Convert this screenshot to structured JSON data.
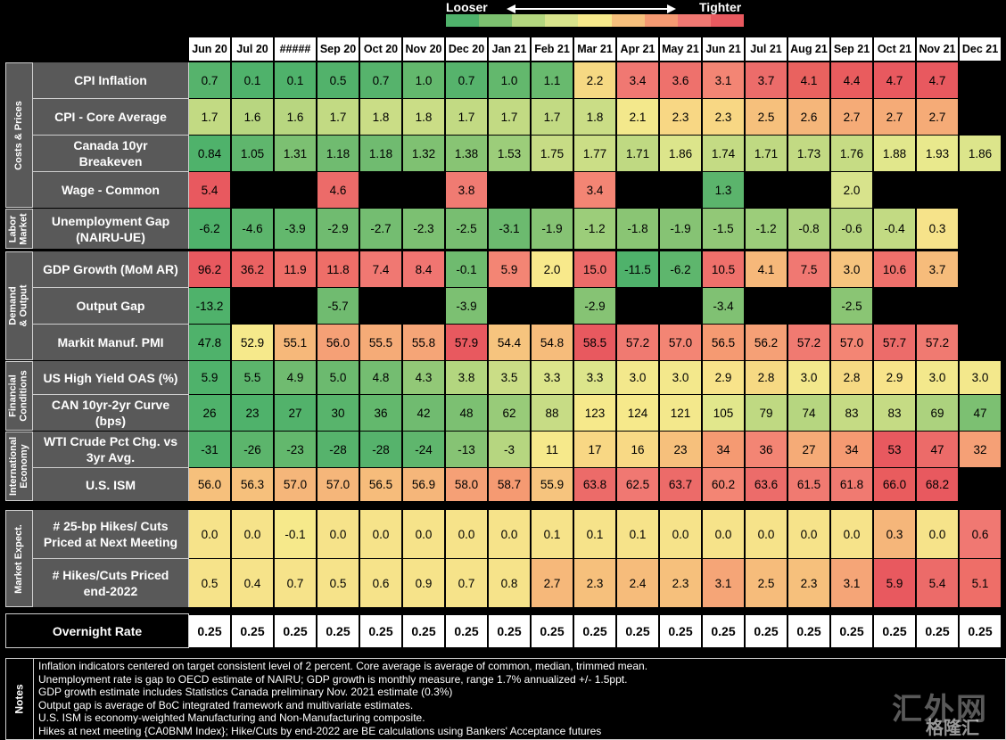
{
  "legend": {
    "looser_label": "Looser",
    "tighter_label": "Tighter",
    "scale_colors": [
      "#4fb26b",
      "#7cc06f",
      "#b3d67f",
      "#d8e38c",
      "#f6e98b",
      "#f6c07c",
      "#f59a72",
      "#f07872",
      "#e8595f"
    ]
  },
  "months": [
    "Jun 20",
    "Jul 20",
    "#####",
    "Sep 20",
    "Oct 20",
    "Nov 20",
    "Dec 20",
    "Jan 21",
    "Feb 21",
    "Mar 21",
    "Apr 21",
    "May 21",
    "Jun 21",
    "Jul 21",
    "Aug 21",
    "Sep 21",
    "Oct 21",
    "Nov 21",
    "Dec 21"
  ],
  "groups": [
    {
      "label": "Costs & Prices"
    },
    {
      "label": "Labor\nMarket"
    },
    {
      "label": "Demand\n& Output"
    },
    {
      "label": "Financial\nConditions"
    },
    {
      "label": "International\nEconomy"
    },
    {
      "label": "Market Expect."
    }
  ],
  "rows": [
    {
      "label": "CPI Inflation",
      "values": [
        "0.7",
        "0.1",
        "0.1",
        "0.5",
        "0.7",
        "1.0",
        "0.7",
        "1.0",
        "1.1",
        "2.2",
        "3.4",
        "3.6",
        "3.1",
        "3.7",
        "4.1",
        "4.4",
        "4.7",
        "4.7",
        ""
      ],
      "colors": [
        "#56b36c",
        "#4fb26b",
        "#4fb26b",
        "#52b26b",
        "#56b36c",
        "#63b86d",
        "#56b36c",
        "#63b86d",
        "#68ba6e",
        "#f6d983",
        "#f07872",
        "#ee716c",
        "#f38574",
        "#ec6c6a",
        "#e9625f",
        "#e95c5e",
        "#e8595f",
        "#e8595f",
        "#000000"
      ]
    },
    {
      "label": "CPI - Core Average",
      "values": [
        "1.7",
        "1.6",
        "1.6",
        "1.7",
        "1.8",
        "1.8",
        "1.7",
        "1.7",
        "1.7",
        "1.8",
        "2.1",
        "2.3",
        "2.3",
        "2.5",
        "2.6",
        "2.7",
        "2.7",
        "2.7",
        ""
      ],
      "colors": [
        "#c2da83",
        "#b8d680",
        "#b8d680",
        "#c2da83",
        "#cadd86",
        "#cadd86",
        "#c2da83",
        "#c2da83",
        "#c2da83",
        "#cadd86",
        "#f3e88c",
        "#f8d784",
        "#f8d784",
        "#f6c07c",
        "#f5b67a",
        "#f5ab77",
        "#f5ab77",
        "#f5ab77",
        "#000000"
      ]
    },
    {
      "label": "Canada 10yr\nBreakeven",
      "values": [
        "0.84",
        "1.05",
        "1.31",
        "1.18",
        "1.18",
        "1.32",
        "1.38",
        "1.53",
        "1.75",
        "1.77",
        "1.71",
        "1.86",
        "1.74",
        "1.71",
        "1.73",
        "1.76",
        "1.88",
        "1.93",
        "1.86"
      ],
      "colors": [
        "#4fb26b",
        "#5fb66d",
        "#7cc072",
        "#70bb70",
        "#70bb70",
        "#7fc172",
        "#88c474",
        "#9ccd7a",
        "#c7dc85",
        "#cbde86",
        "#bfd982",
        "#dce58b",
        "#c4db84",
        "#bfd982",
        "#c2da83",
        "#c6dc84",
        "#e1e78c",
        "#e9e98d",
        "#dce58b"
      ]
    },
    {
      "label": "Wage - Common",
      "values": [
        "5.4",
        "",
        "",
        "4.6",
        "",
        "",
        "3.8",
        "",
        "",
        "3.4",
        "",
        "",
        "1.3",
        "",
        "",
        "2.0",
        "",
        "",
        ""
      ],
      "colors": [
        "#e8595f",
        "#000000",
        "#000000",
        "#ec6b69",
        "#000000",
        "#000000",
        "#f07b72",
        "#000000",
        "#000000",
        "#f38574",
        "#000000",
        "#000000",
        "#5bb46c",
        "#000000",
        "#000000",
        "#d8e38c",
        "#000000",
        "#000000",
        "#000000"
      ]
    },
    {
      "label": "Unemployment Gap\n(NAIRU-UE)",
      "values": [
        "-6.2",
        "-4.6",
        "-3.9",
        "-2.9",
        "-2.7",
        "-2.3",
        "-2.5",
        "-3.1",
        "-1.9",
        "-1.2",
        "-1.8",
        "-1.9",
        "-1.5",
        "-1.2",
        "-0.8",
        "-0.6",
        "-0.4",
        "0.3",
        ""
      ],
      "colors": [
        "#4fb26b",
        "#5cb56c",
        "#63b86d",
        "#70bb70",
        "#74bd71",
        "#7cc072",
        "#78be71",
        "#6cba6f",
        "#86c374",
        "#9ccd7a",
        "#8ac574",
        "#86c374",
        "#92c877",
        "#9ccd7a",
        "#acd27e",
        "#b6d680",
        "#c2da83",
        "#f6e38a",
        "#000000"
      ]
    },
    {
      "label": "GDP Growth (MoM AR)",
      "values": [
        "96.2",
        "36.2",
        "11.9",
        "11.8",
        "7.4",
        "8.4",
        "-0.1",
        "5.9",
        "2.0",
        "15.0",
        "-11.5",
        "-6.2",
        "10.5",
        "4.1",
        "7.5",
        "3.0",
        "10.6",
        "3.7",
        ""
      ],
      "colors": [
        "#e8595f",
        "#ea6262",
        "#ee6e68",
        "#ee6e68",
        "#f07872",
        "#f07571",
        "#6fbb6f",
        "#f38574",
        "#f8e98b",
        "#ec6b69",
        "#4fb26b",
        "#5eb66d",
        "#ef706b",
        "#f6b87a",
        "#f07872",
        "#f6c47e",
        "#ef706b",
        "#f6bc7b",
        "#000000"
      ]
    },
    {
      "label": "Output Gap",
      "values": [
        "-13.2",
        "",
        "",
        "-5.7",
        "",
        "",
        "-3.9",
        "",
        "",
        "-2.9",
        "",
        "",
        "-3.4",
        "",
        "",
        "-2.5",
        "",
        "",
        ""
      ],
      "colors": [
        "#4fb26b",
        "#000000",
        "#000000",
        "#70bb70",
        "#000000",
        "#000000",
        "#7cc072",
        "#000000",
        "#000000",
        "#86c374",
        "#000000",
        "#000000",
        "#80c173",
        "#000000",
        "#000000",
        "#8ac574",
        "#000000",
        "#000000",
        "#000000"
      ]
    },
    {
      "label": "Markit Manuf. PMI",
      "values": [
        "47.8",
        "52.9",
        "55.1",
        "56.0",
        "55.5",
        "55.8",
        "57.9",
        "54.4",
        "54.8",
        "58.5",
        "57.2",
        "57.0",
        "56.5",
        "56.2",
        "57.2",
        "57.0",
        "57.7",
        "57.2",
        ""
      ],
      "colors": [
        "#4fb26b",
        "#f6e98b",
        "#f6b87a",
        "#f5a076",
        "#f5ab77",
        "#f5a577",
        "#e8595f",
        "#f6c47e",
        "#f6bc7b",
        "#e8595f",
        "#f07a71",
        "#f38574",
        "#f59a72",
        "#f5a076",
        "#f07a71",
        "#f38574",
        "#ec6c6a",
        "#f07a71",
        "#000000"
      ]
    },
    {
      "label": "US High Yield OAS (%)",
      "values": [
        "5.9",
        "5.5",
        "4.9",
        "5.0",
        "4.8",
        "4.3",
        "3.8",
        "3.5",
        "3.3",
        "3.3",
        "3.0",
        "3.0",
        "2.9",
        "2.8",
        "3.0",
        "2.8",
        "2.9",
        "3.0",
        "3.0"
      ],
      "colors": [
        "#4fb26b",
        "#5cb56c",
        "#70bb70",
        "#6cba6f",
        "#74bd71",
        "#92c877",
        "#b3d67f",
        "#cadd86",
        "#dce58b",
        "#dce58b",
        "#f3e88c",
        "#f3e88c",
        "#f8e38a",
        "#f6d983",
        "#f3e88c",
        "#f6d983",
        "#f8e38a",
        "#f3e88c",
        "#f3e88c"
      ]
    },
    {
      "label": "CAN 10yr-2yr Curve\n(bps)",
      "values": [
        "26",
        "23",
        "27",
        "30",
        "36",
        "42",
        "48",
        "62",
        "88",
        "123",
        "124",
        "121",
        "105",
        "79",
        "74",
        "83",
        "83",
        "69",
        "47"
      ],
      "colors": [
        "#4fb26b",
        "#4fb26b",
        "#52b26b",
        "#58b46c",
        "#63b86d",
        "#70bb70",
        "#7cc072",
        "#98cb79",
        "#c7dc85",
        "#f6e98b",
        "#f6e98b",
        "#f3e88c",
        "#e1e78c",
        "#bfd982",
        "#b6d680",
        "#c5db84",
        "#c5db84",
        "#acd27e",
        "#7cc072"
      ]
    },
    {
      "label": "WTI Crude Pct Chg. vs\n3yr Avg.",
      "values": [
        "-31",
        "-26",
        "-23",
        "-28",
        "-28",
        "-24",
        "-13",
        "-3",
        "11",
        "17",
        "16",
        "23",
        "34",
        "36",
        "27",
        "34",
        "53",
        "47",
        "32"
      ],
      "colors": [
        "#4fb26b",
        "#5cb56c",
        "#63b86d",
        "#56b36c",
        "#56b36c",
        "#5fb66d",
        "#86c374",
        "#b6d680",
        "#f6e98b",
        "#f8d784",
        "#f8d985",
        "#f6c07c",
        "#f59a72",
        "#f38574",
        "#f5ab77",
        "#f59a72",
        "#e8595f",
        "#ec6b69",
        "#f5a076"
      ]
    },
    {
      "label": "U.S. ISM",
      "values": [
        "56.0",
        "56.3",
        "57.0",
        "57.0",
        "56.5",
        "56.9",
        "58.0",
        "58.7",
        "55.9",
        "63.8",
        "62.5",
        "63.7",
        "60.2",
        "63.6",
        "61.5",
        "61.8",
        "66.0",
        "68.2",
        ""
      ],
      "colors": [
        "#f6c07c",
        "#f6c07c",
        "#f5b67a",
        "#f5b67a",
        "#f6bc7b",
        "#f5b67a",
        "#f5a076",
        "#f59a72",
        "#f6c47e",
        "#ec6b69",
        "#f07872",
        "#ec6b69",
        "#f38574",
        "#ec6c6a",
        "#f07a71",
        "#f07a71",
        "#e95c5e",
        "#e8595f",
        "#000000"
      ]
    },
    {
      "label": "# 25-bp Hikes/ Cuts\nPriced at Next Meeting",
      "values": [
        "0.0",
        "0.0",
        "-0.1",
        "0.0",
        "0.0",
        "0.0",
        "0.0",
        "0.0",
        "0.1",
        "0.1",
        "0.1",
        "0.0",
        "0.0",
        "0.0",
        "0.0",
        "0.0",
        "0.3",
        "0.0",
        "0.6"
      ],
      "colors": [
        "#f6e38a",
        "#f6e38a",
        "#f6e98b",
        "#f6e38a",
        "#f6e38a",
        "#f6e38a",
        "#f6e38a",
        "#f6e38a",
        "#f6e38a",
        "#f6e38a",
        "#f6e38a",
        "#f6e38a",
        "#f6e38a",
        "#f6e38a",
        "#f6e38a",
        "#f6e38a",
        "#f5b67a",
        "#f6e38a",
        "#f07872"
      ]
    },
    {
      "label": "# Hikes/Cuts Priced\nend-2022",
      "values": [
        "0.5",
        "0.4",
        "0.7",
        "0.5",
        "0.6",
        "0.9",
        "0.7",
        "0.8",
        "2.7",
        "2.3",
        "2.4",
        "2.3",
        "3.1",
        "2.5",
        "2.3",
        "3.1",
        "5.9",
        "5.4",
        "5.1"
      ],
      "colors": [
        "#f6e38a",
        "#f6e38a",
        "#f6e38a",
        "#f6e38a",
        "#f6e38a",
        "#f6e38a",
        "#f6e38a",
        "#f6e38a",
        "#f6b87a",
        "#f6c07c",
        "#f6bc7b",
        "#f6c07c",
        "#f5a577",
        "#f6bc7b",
        "#f6c07c",
        "#f5a577",
        "#e8595f",
        "#ec6b69",
        "#ee6e68"
      ]
    }
  ],
  "overnight": {
    "label": "Overnight Rate",
    "values": [
      "0.25",
      "0.25",
      "0.25",
      "0.25",
      "0.25",
      "0.25",
      "0.25",
      "0.25",
      "0.25",
      "0.25",
      "0.25",
      "0.25",
      "0.25",
      "0.25",
      "0.25",
      "0.25",
      "0.25",
      "0.25",
      "0.25"
    ]
  },
  "notes": {
    "title": "Notes",
    "lines": [
      "Inflation indicators centered on target consistent level of 2 percent. Core average is average of common, median, trimmed mean.",
      "Unemployment rate is gap to OECD estimate of NAIRU; GDP growth is monthly measure, range 1.7% annualized +/- 1.5ppt.",
      "GDP growth estimate includes Statistics Canada preliminary Nov. 2021 estimate (0.3%)",
      "Output gap is average of BoC integrated framework and multivariate estimates.",
      "U.S. ISM is economy-weighted Manufacturing and Non-Manufacturing composite.",
      "Hikes at next meeting {CA0BNM Index}; Hike/Cuts by end-2022 are BE calculations using Bankers' Acceptance futures"
    ]
  },
  "watermark": {
    "text1": "汇外网",
    "text2": "格隆汇"
  },
  "chart_data": {
    "type": "table",
    "columns": [
      "Jun 20",
      "Jul 20",
      "#####",
      "Sep 20",
      "Oct 20",
      "Nov 20",
      "Dec 20",
      "Jan 21",
      "Feb 21",
      "Mar 21",
      "Apr 21",
      "May 21",
      "Jun 21",
      "Jul 21",
      "Aug 21",
      "Sep 21",
      "Oct 21",
      "Nov 21",
      "Dec 21"
    ],
    "row_labels": [
      "CPI Inflation",
      "CPI - Core Average",
      "Canada 10yr Breakeven",
      "Wage - Common",
      "Unemployment Gap (NAIRU-UE)",
      "GDP Growth (MoM AR)",
      "Output Gap",
      "Markit Manuf. PMI",
      "US High Yield OAS (%)",
      "CAN 10yr-2yr Curve (bps)",
      "WTI Crude Pct Chg. vs 3yr Avg.",
      "U.S. ISM",
      "# 25-bp Hikes/ Cuts Priced at Next Meeting",
      "# Hikes/Cuts Priced end-2022",
      "Overnight Rate"
    ],
    "color_scale": "Looser (green) to Tighter (red)"
  }
}
